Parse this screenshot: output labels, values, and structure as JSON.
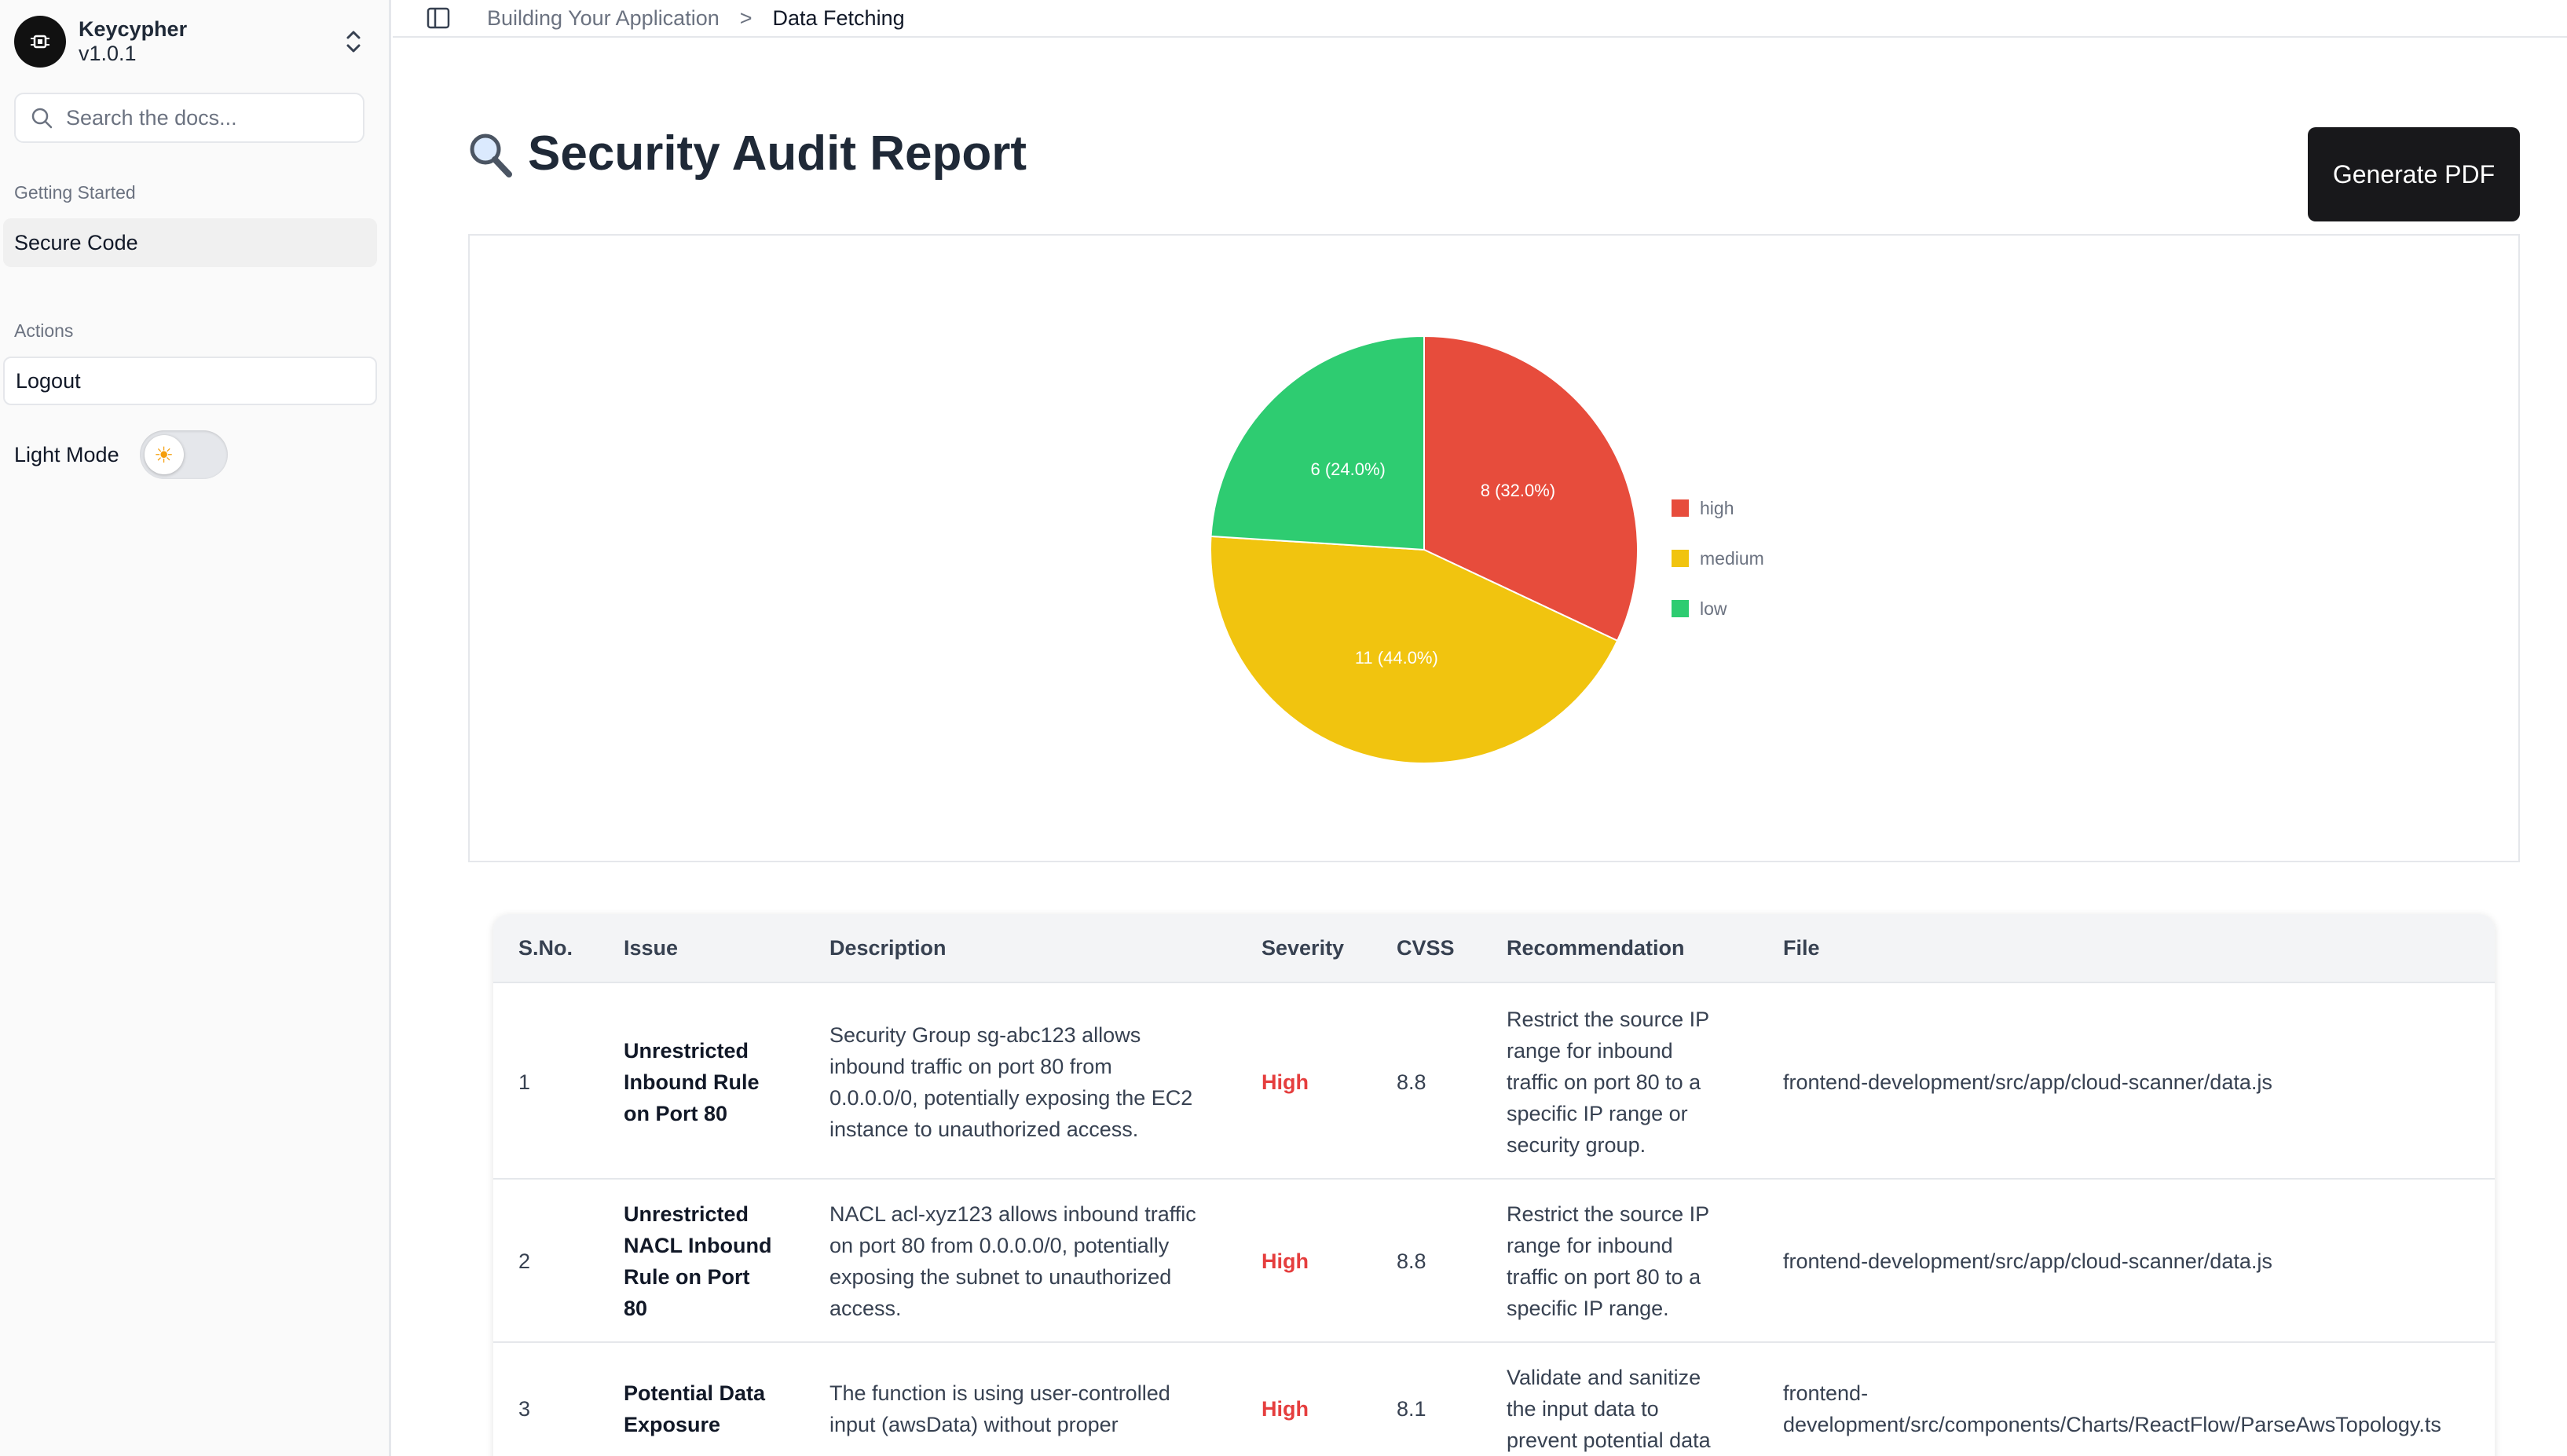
{
  "sidebar": {
    "brand_name": "Keycypher",
    "brand_version": "v1.0.1",
    "search_placeholder": "Search the docs...",
    "group_getting_started": "Getting Started",
    "item_secure_code": "Secure Code",
    "group_actions": "Actions",
    "item_logout": "Logout",
    "theme_label": "Light Mode",
    "theme_toggle_on": false
  },
  "breadcrumb": {
    "parent": "Building Your Application",
    "separator": ">",
    "current": "Data Fetching"
  },
  "page": {
    "title": "Security Audit Report",
    "title_icon": "magnifier-icon",
    "generate_button": "Generate PDF"
  },
  "chart_data": {
    "type": "pie",
    "categories": [
      "high",
      "medium",
      "low"
    ],
    "values": [
      8,
      11,
      6
    ],
    "data_labels": [
      "8 (32.0%)",
      "11 (44.0%)",
      "6 (24.0%)"
    ],
    "colors": [
      "#e74c3c",
      "#f1c40f",
      "#2ecc71"
    ],
    "legend_position": "right"
  },
  "table": {
    "headers": [
      "S.No.",
      "Issue",
      "Description",
      "Severity",
      "CVSS",
      "Recommendation",
      "File"
    ],
    "rows": [
      {
        "sno": "1",
        "issue": [
          "Unrestricted",
          "Inbound Rule",
          "on Port 80"
        ],
        "description": [
          "Security Group sg-abc123 allows",
          "inbound traffic on port 80 from",
          "0.0.0.0/0, potentially exposing the EC2",
          "instance to unauthorized access."
        ],
        "severity": "High",
        "cvss": "8.8",
        "recommendation": [
          "Restrict the source IP",
          "range for inbound",
          "traffic on port 80 to a",
          "specific IP range or",
          "security group."
        ],
        "file": [
          "frontend-development/src/app/cloud-scanner/data.js"
        ]
      },
      {
        "sno": "2",
        "issue": [
          "Unrestricted",
          "NACL Inbound",
          "Rule on Port",
          "80"
        ],
        "description": [
          "NACL acl-xyz123 allows inbound traffic",
          "on port 80 from 0.0.0.0/0, potentially",
          "exposing the subnet to unauthorized",
          "access."
        ],
        "severity": "High",
        "cvss": "8.8",
        "recommendation": [
          "Restrict the source IP",
          "range for inbound",
          "traffic on port 80 to a",
          "specific IP range."
        ],
        "file": [
          "frontend-development/src/app/cloud-scanner/data.js"
        ]
      },
      {
        "sno": "3",
        "issue": [
          "Potential Data",
          "Exposure"
        ],
        "description": [
          "The function is using user-controlled",
          "input (awsData) without proper"
        ],
        "severity": "High",
        "cvss": "8.1",
        "recommendation": [
          "Validate and sanitize",
          "the input data to",
          "prevent potential data"
        ],
        "file": [
          "frontend-",
          "development/src/components/Charts/ReactFlow/ParseAwsTopology.ts"
        ]
      }
    ]
  }
}
